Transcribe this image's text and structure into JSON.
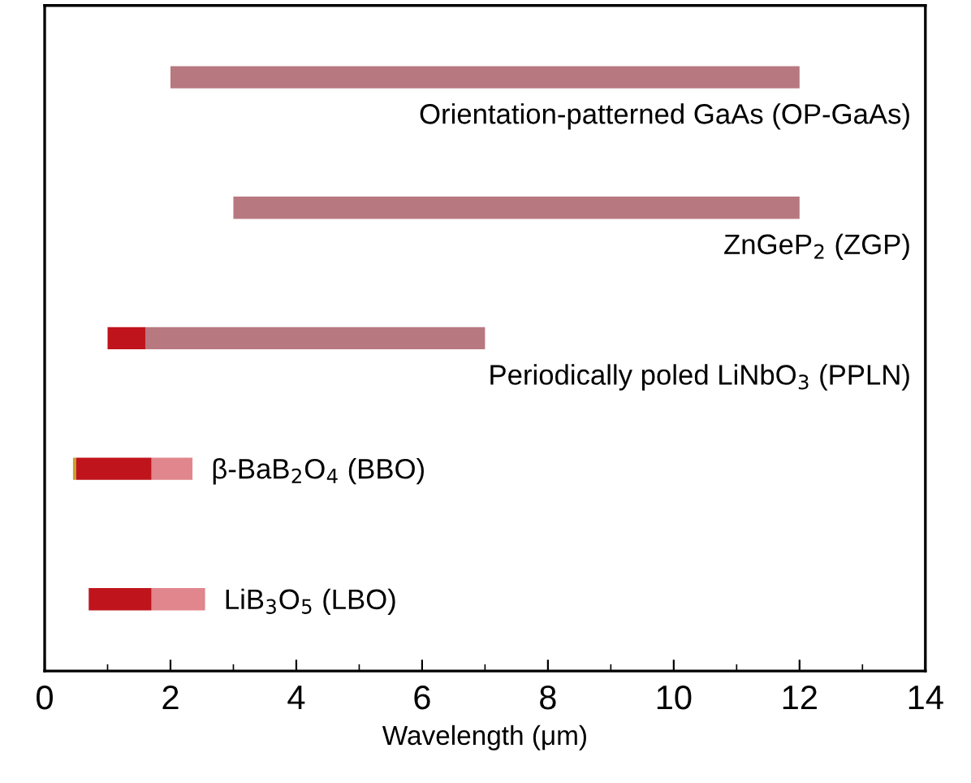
{
  "chart_data": {
    "type": "bar",
    "orientation": "horizontal",
    "xlabel": "Wavelength (μm)",
    "categories": [
      "Orientation-patterned GaAs (OP-GaAs)",
      "ZnGeP$_{2}$ (ZGP)",
      "Periodically poled LiNbO$_{3}$ (PPLN)",
      "β-BaB$_{2}$O$_{4}$ (BBO)",
      "LiB$_{3}$O$_{5}$ (LBO)"
    ],
    "series": [
      {
        "base": [
          null,
          null,
          null,
          0.45,
          null
        ],
        "values": [
          null,
          null,
          null,
          0.05,
          null
        ],
        "color": "#c8a030"
      },
      {
        "base": [
          null,
          null,
          1.0,
          0.5,
          0.7
        ],
        "values": [
          null,
          null,
          0.6,
          1.2,
          1.0
        ],
        "color": "#c0141c"
      },
      {
        "base": [
          2.0,
          3.0,
          1.6,
          1.7,
          1.7
        ],
        "values": [
          10.0,
          9.0,
          5.4,
          0.65,
          0.85
        ],
        "colors": [
          "#b87880",
          "#b87880",
          "#b87880",
          "#e0868c",
          "#e0868c"
        ]
      }
    ],
    "xlim": [
      0,
      14
    ],
    "xticks": [
      0,
      2,
      4,
      6,
      8,
      10,
      12,
      14
    ],
    "tick_labels": "x",
    "grid": false,
    "legend": false
  }
}
